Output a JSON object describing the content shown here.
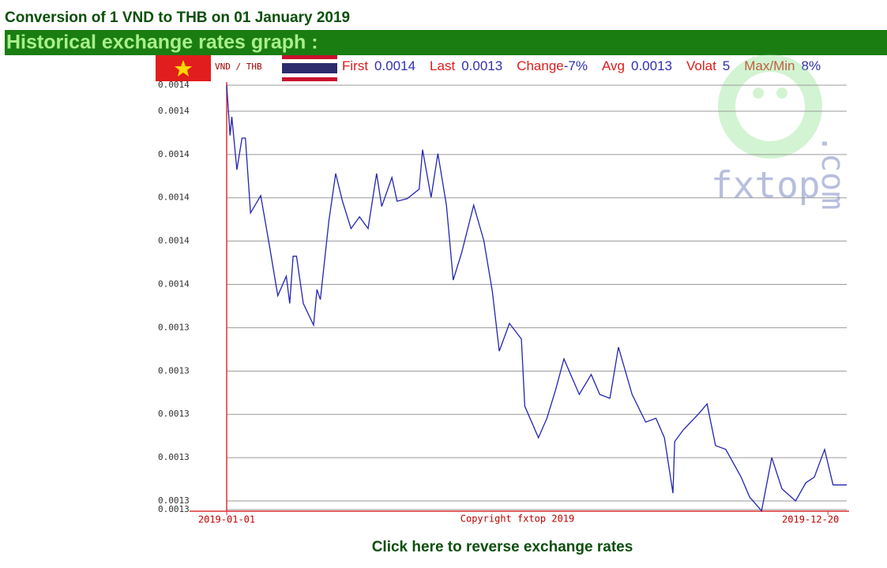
{
  "page": {
    "title": "Conversion of 1 VND to THB on 01 January 2019",
    "section": "Historical exchange rates graph :",
    "link": "Click here to reverse exchange rates"
  },
  "chart_data": {
    "type": "line",
    "pair": "VND / THB",
    "stats": [
      {
        "label": "First",
        "value": "0.0014"
      },
      {
        "label": "Last",
        "value": "0.0013"
      },
      {
        "label": "Change",
        "value": "-7%"
      },
      {
        "label": "Avg",
        "value": "0.0013"
      },
      {
        "label": "Volat",
        "value": "5"
      },
      {
        "label": "Max/Min",
        "value": "8%"
      }
    ],
    "copyright": "Copyright fxtop 2019",
    "watermark": [
      "fxtop",
      ".com"
    ],
    "x": [
      "2019-01-01",
      "2019-01-03",
      "2019-01-04",
      "2019-01-07",
      "2019-01-10",
      "2019-01-12",
      "2019-01-15",
      "2019-01-21",
      "2019-01-26",
      "2019-01-31",
      "2019-02-05",
      "2019-02-07",
      "2019-02-09",
      "2019-02-11",
      "2019-02-15",
      "2019-02-21",
      "2019-02-23",
      "2019-02-25",
      "2019-03-02",
      "2019-03-06",
      "2019-03-10",
      "2019-03-15",
      "2019-03-20",
      "2019-03-25",
      "2019-03-30",
      "2019-04-02",
      "2019-04-08",
      "2019-04-11",
      "2019-04-17",
      "2019-04-24",
      "2019-04-26",
      "2019-05-01",
      "2019-05-05",
      "2019-05-10",
      "2019-05-14",
      "2019-05-19",
      "2019-05-26",
      "2019-06-01",
      "2019-06-06",
      "2019-06-10",
      "2019-06-16",
      "2019-06-23",
      "2019-06-25",
      "2019-07-03",
      "2019-07-08",
      "2019-07-13",
      "2019-07-18",
      "2019-07-27",
      "2019-08-03",
      "2019-08-08",
      "2019-08-14",
      "2019-08-19",
      "2019-08-27",
      "2019-09-04",
      "2019-09-10",
      "2019-09-15",
      "2019-09-20",
      "2019-09-21",
      "2019-09-26",
      "2019-10-05",
      "2019-10-10",
      "2019-10-15",
      "2019-10-21",
      "2019-10-30",
      "2019-11-04",
      "2019-11-11",
      "2019-11-17",
      "2019-11-23",
      "2019-12-01",
      "2019-12-07",
      "2019-12-12",
      "2019-12-18",
      "2019-12-23",
      "2019-12-31"
    ],
    "series": [
      {
        "color": "#2323b4",
        "values": [
          0.001406,
          0.0013944,
          0.0013987,
          0.0013865,
          0.0013938,
          0.0013938,
          0.0013765,
          0.0013805,
          0.0013692,
          0.0013574,
          0.0013619,
          0.0013556,
          0.0013665,
          0.0013665,
          0.0013556,
          0.0013506,
          0.0013588,
          0.0013565,
          0.0013747,
          0.0013856,
          0.0013792,
          0.0013729,
          0.0013756,
          0.0013729,
          0.0013856,
          0.001378,
          0.0013847,
          0.0013792,
          0.0013798,
          0.001382,
          0.0013911,
          0.0013801,
          0.0013902,
          0.0013783,
          0.001361,
          0.0013674,
          0.0013783,
          0.0013701,
          0.0013583,
          0.0013446,
          0.001351,
          0.0013474,
          0.0013319,
          0.0013246,
          0.0013291,
          0.0013355,
          0.0013428,
          0.0013346,
          0.0013392,
          0.0013346,
          0.0013337,
          0.0013455,
          0.0013346,
          0.0013282,
          0.0013291,
          0.0013246,
          0.0013118,
          0.0013237,
          0.0013264,
          0.0013301,
          0.0013324,
          0.0013228,
          0.0013219,
          0.0013155,
          0.0013109,
          0.0013077,
          0.00132,
          0.0013128,
          0.00131,
          0.0013142,
          0.0013155,
          0.0013219,
          0.0013137,
          0.0013137
        ]
      }
    ],
    "xlim": [
      "2019-01-01",
      "2019-12-31"
    ],
    "xticks": [
      "2019-01-01",
      "2019-12-20"
    ],
    "ylim": [
      0.001308,
      0.001406
    ],
    "yticks": [
      {
        "value": 0.001406,
        "label": "0.0014"
      },
      {
        "value": 0.0014,
        "label": "0.0014"
      },
      {
        "value": 0.00139,
        "label": "0.0014"
      },
      {
        "value": 0.00138,
        "label": "0.0014"
      },
      {
        "value": 0.00137,
        "label": "0.0014"
      },
      {
        "value": 0.00136,
        "label": "0.0014"
      },
      {
        "value": 0.00135,
        "label": "0.0013"
      },
      {
        "value": 0.00134,
        "label": "0.0013"
      },
      {
        "value": 0.00133,
        "label": "0.0013"
      },
      {
        "value": 0.00132,
        "label": "0.0013"
      },
      {
        "value": 0.00131,
        "label": "0.0013"
      },
      {
        "value": 0.001308,
        "label": "0.0013"
      }
    ],
    "grid": true
  }
}
